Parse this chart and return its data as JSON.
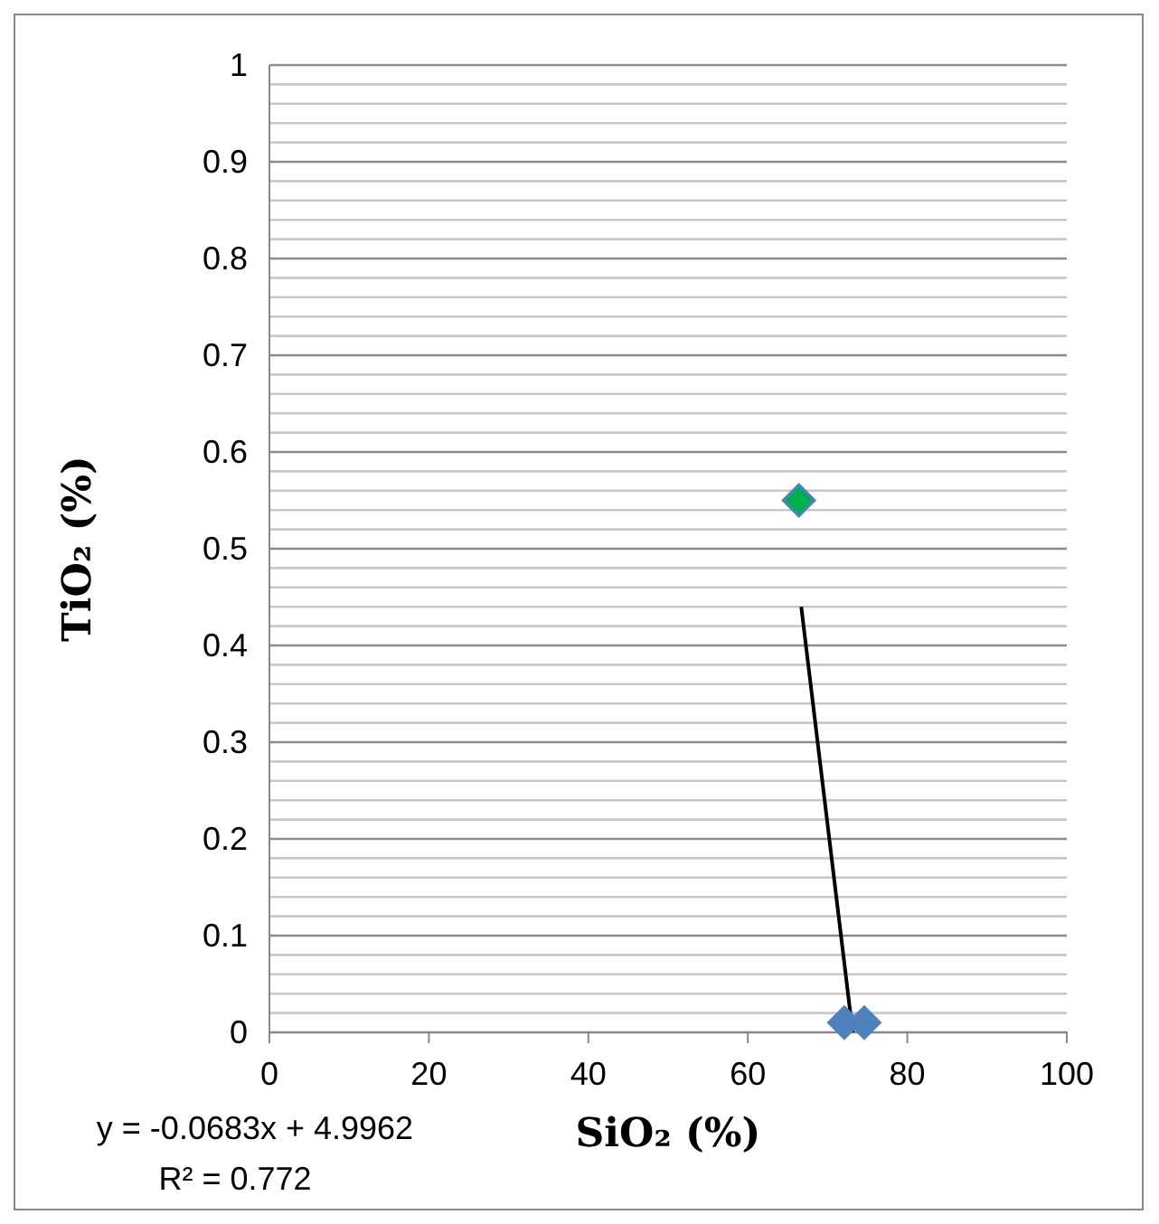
{
  "chart_data": {
    "type": "scatter",
    "xlabel": "SiO₂ (%)",
    "ylabel": "TiO₂ (%)",
    "xlim": [
      0,
      100
    ],
    "xticks": [
      0,
      20,
      40,
      60,
      80,
      100
    ],
    "ylim": [
      0,
      1
    ],
    "yticks": [
      0,
      {
        "value": 0.02,
        "label": null
      },
      {
        "value": 0.04,
        "label": null
      },
      {
        "value": 0.06,
        "label": null
      },
      {
        "value": 0.08,
        "label": null
      },
      0.1,
      {
        "value": 0.12,
        "label": null
      },
      {
        "value": 0.14,
        "label": null
      },
      {
        "value": 0.16,
        "label": null
      },
      {
        "value": 0.18,
        "label": null
      },
      0.2,
      {
        "value": 0.22,
        "label": null
      },
      {
        "value": 0.24,
        "label": null
      },
      {
        "value": 0.26,
        "label": null
      },
      {
        "value": 0.28,
        "label": null
      },
      0.3,
      {
        "value": 0.32,
        "label": null
      },
      {
        "value": 0.34,
        "label": null
      },
      {
        "value": 0.36,
        "label": null
      },
      {
        "value": 0.38,
        "label": null
      },
      0.4,
      {
        "value": 0.42,
        "label": null
      },
      {
        "value": 0.44,
        "label": null
      },
      {
        "value": 0.46,
        "label": null
      },
      {
        "value": 0.48,
        "label": null
      },
      0.5,
      {
        "value": 0.52,
        "label": null
      },
      {
        "value": 0.54,
        "label": null
      },
      {
        "value": 0.56,
        "label": null
      },
      {
        "value": 0.58,
        "label": null
      },
      0.6,
      {
        "value": 0.62,
        "label": null
      },
      {
        "value": 0.64,
        "label": null
      },
      {
        "value": 0.66,
        "label": null
      },
      {
        "value": 0.68,
        "label": null
      },
      0.7,
      {
        "value": 0.72,
        "label": null
      },
      {
        "value": 0.74,
        "label": null
      },
      {
        "value": 0.76,
        "label": null
      },
      {
        "value": 0.78,
        "label": null
      },
      0.8,
      {
        "value": 0.82,
        "label": null
      },
      {
        "value": 0.84,
        "label": null
      },
      {
        "value": 0.86,
        "label": null
      },
      {
        "value": 0.88,
        "label": null
      },
      0.9,
      {
        "value": 0.92,
        "label": null
      },
      {
        "value": 0.94,
        "label": null
      },
      {
        "value": 0.96,
        "label": null
      },
      {
        "value": 0.98,
        "label": null
      },
      1
    ],
    "grid": "y",
    "marker": "diamond",
    "series": [
      {
        "color": "#4f81bd",
        "x": [
          72.1,
          74.6
        ],
        "values": [
          0.01,
          0.01
        ]
      },
      {
        "color": "#00b050",
        "x": [
          66.4
        ],
        "values": [
          0.55
        ]
      },
      {
        "type": "line",
        "marker": "none",
        "color": "#000000",
        "x": [
          66.7,
          73.15
        ],
        "values": [
          0.44,
          0
        ]
      }
    ],
    "annotations": [
      "y = -0.0683x + 4.9962",
      "R² = 0.772"
    ]
  }
}
